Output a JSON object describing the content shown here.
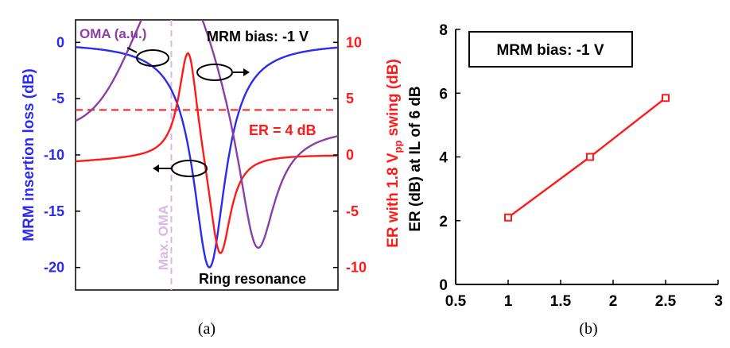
{
  "figure": {
    "caption_a": "(a)",
    "caption_b": "(b)"
  },
  "colors": {
    "insertion_loss": "#2b2bf0",
    "er": "#ff1a1a",
    "oma": "#8a3fa8",
    "max_oma_line": "#d9b8e6",
    "axis": "#000000"
  },
  "chart_data": [
    {
      "type": "line",
      "panel": "a",
      "annotation_bias": "MRM bias: -1 V",
      "annotation_er": "ER = 4 dB",
      "annotation_resonance": "Ring resonance",
      "annotation_max_oma": "Max. OMA",
      "oma_label": "OMA (a.u.)",
      "ylabel_left": "MRM insertion loss (dB)",
      "ylabel_right_prefix": "ER with 1.8 V",
      "ylabel_right_sub": "pp",
      "ylabel_right_suffix": " swing (dB)",
      "ylim_left": [
        -22,
        2
      ],
      "ylim_right": [
        -12,
        12
      ],
      "left_ticks": [
        "0",
        "-5",
        "-10",
        "-15",
        "-20"
      ],
      "left_tick_values": [
        0,
        -5,
        -10,
        -15,
        -20
      ],
      "right_ticks": [
        "10",
        "5",
        "0",
        "-5",
        "-10"
      ],
      "right_tick_values": [
        10,
        5,
        0,
        -5,
        -10
      ],
      "x_ticks_labeled": false,
      "er_threshold_right": 4,
      "series": [
        {
          "name": "MRM insertion loss",
          "axis": "left",
          "color_key": "insertion_loss",
          "shape": {
            "kind": "lorentz_dip",
            "center": 0.51,
            "width": 0.075,
            "depth": 20,
            "base": 0
          }
        },
        {
          "name": "ER",
          "axis": "right",
          "color_key": "er",
          "shape": {
            "kind": "er_swing",
            "peak_x": 0.43,
            "trough_x": 0.55,
            "peak": 10,
            "trough": -10,
            "base": 0
          }
        },
        {
          "name": "OMA",
          "axis": "left",
          "color_key": "oma",
          "shape": {
            "kind": "lorentz_dip_with_peak",
            "dip_center": 0.69,
            "dip_width": 0.15,
            "dip_depth": 20,
            "peak_x": 0.38,
            "peak_value": 0
          }
        }
      ],
      "markers": {
        "max_oma_x": 0.365
      }
    },
    {
      "type": "line",
      "panel": "b",
      "annotation_bias": "MRM bias: -1 V",
      "xlabel": "",
      "ylabel": "ER (dB) at IL of 6 dB",
      "xlim": [
        0.5,
        3
      ],
      "ylim": [
        0,
        8
      ],
      "x_ticks": [
        0.5,
        1,
        1.5,
        2,
        2.5,
        3
      ],
      "x_tick_labels": [
        "0.5",
        "1",
        "1.5",
        "2",
        "2.5",
        "3"
      ],
      "y_ticks": [
        0,
        2,
        4,
        6,
        8
      ],
      "y_tick_labels": [
        "0",
        "2",
        "4",
        "6",
        "8"
      ],
      "series": [
        {
          "color_key": "er",
          "marker": "square",
          "x": [
            1.0,
            1.78,
            2.5
          ],
          "y": [
            2.1,
            4.0,
            5.85
          ]
        }
      ]
    }
  ]
}
